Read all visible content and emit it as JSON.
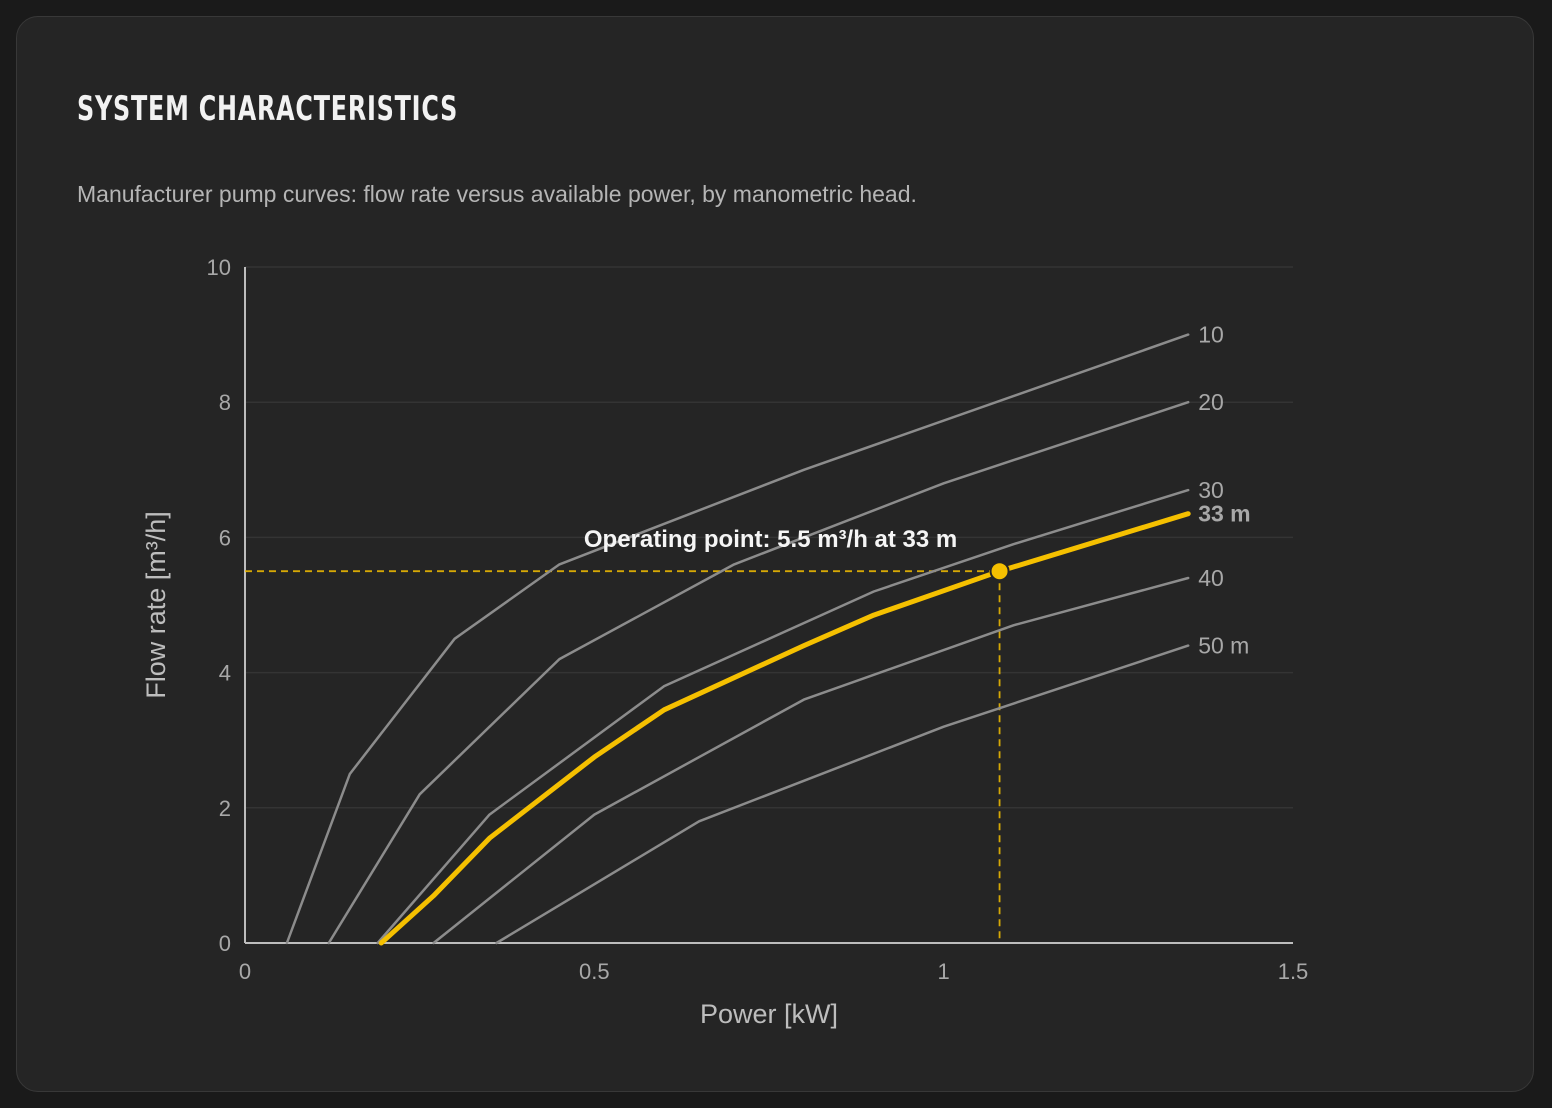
{
  "header": {
    "title": "SYSTEM CHARACTERISTICS",
    "subtitle": "Manufacturer pump curves: flow rate versus available power, by manometric head."
  },
  "colors": {
    "background": "#252525",
    "grid": "#343434",
    "axis": "#bdbdbd",
    "curve": "#8c8c8c",
    "highlight": "#f5c000"
  },
  "chart_data": {
    "type": "line",
    "xlabel": "Power [kW]",
    "ylabel": "Flow rate [m³/h]",
    "xlim": [
      0,
      1.5
    ],
    "ylim": [
      0,
      10
    ],
    "xticks": [
      {
        "value": 0,
        "label": "0"
      },
      {
        "value": 0.5,
        "label": "0.5"
      },
      {
        "value": 1,
        "label": "1"
      },
      {
        "value": 1.5,
        "label": "1.5"
      }
    ],
    "yticks": [
      {
        "value": 0,
        "label": "0"
      },
      {
        "value": 2,
        "label": "2"
      },
      {
        "value": 4,
        "label": "4"
      },
      {
        "value": 6,
        "label": "6"
      },
      {
        "value": 8,
        "label": "8"
      },
      {
        "value": 10,
        "label": "10"
      }
    ],
    "grid": "horizontal",
    "series": [
      {
        "name": "10",
        "highlight": false,
        "x": [
          0.06,
          0.15,
          0.3,
          0.45,
          0.8,
          1.35
        ],
        "y": [
          0,
          2.5,
          4.5,
          5.6,
          7.0,
          9.0
        ]
      },
      {
        "name": "20",
        "highlight": false,
        "x": [
          0.12,
          0.25,
          0.45,
          0.7,
          1.0,
          1.35
        ],
        "y": [
          0,
          2.2,
          4.2,
          5.6,
          6.8,
          8.0
        ]
      },
      {
        "name": "30",
        "highlight": false,
        "x": [
          0.19,
          0.35,
          0.6,
          0.9,
          1.1,
          1.35
        ],
        "y": [
          0,
          1.9,
          3.8,
          5.2,
          5.9,
          6.7
        ]
      },
      {
        "name": "33 m",
        "highlight": true,
        "x": [
          0.195,
          0.27,
          0.35,
          0.5,
          0.6,
          0.8,
          0.9,
          1.08,
          1.35
        ],
        "y": [
          0,
          0.7,
          1.55,
          2.75,
          3.45,
          4.4,
          4.85,
          5.5,
          6.35
        ]
      },
      {
        "name": "40",
        "highlight": false,
        "x": [
          0.27,
          0.5,
          0.8,
          1.1,
          1.35
        ],
        "y": [
          0,
          1.9,
          3.6,
          4.7,
          5.4
        ]
      },
      {
        "name": "50 m",
        "highlight": false,
        "x": [
          0.36,
          0.65,
          1.0,
          1.35
        ],
        "y": [
          0,
          1.8,
          3.2,
          4.4
        ]
      }
    ],
    "operating_point": {
      "x": 1.08,
      "y": 5.5,
      "label": "Operating point: 5.5 m³/h at 33 m"
    }
  }
}
